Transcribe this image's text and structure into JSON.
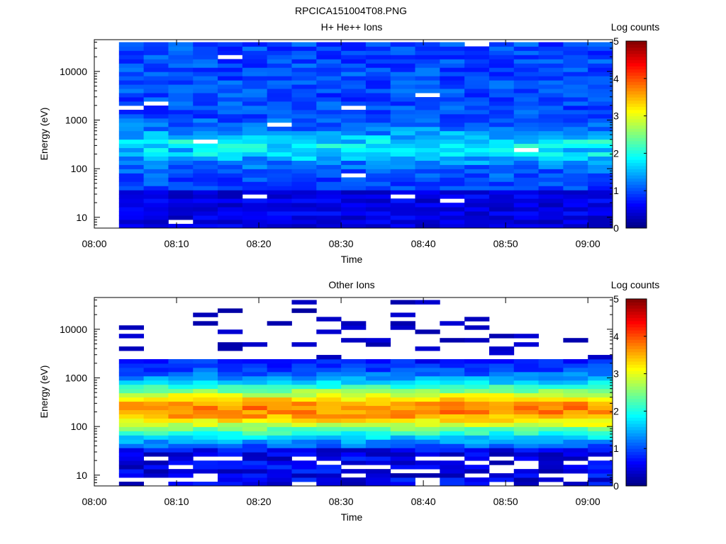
{
  "figure_title": "RPCICA151004T08.PNG",
  "chart_data": [
    {
      "type": "heatmap",
      "title": "H+ He++ Ions",
      "xlabel": "Time",
      "ylabel": "Energy (eV)",
      "x_ticks": [
        "08:00",
        "08:10",
        "08:20",
        "08:30",
        "08:40",
        "08:50",
        "09:00"
      ],
      "y_ticks": [
        "10",
        "100",
        "1000",
        "10000"
      ],
      "xlim": [
        "08:00",
        "09:03"
      ],
      "ylim": [
        6,
        45000
      ],
      "y_scale": "log",
      "time_bins": [
        "08:03",
        "08:06",
        "08:09",
        "08:12",
        "08:15",
        "08:18",
        "08:21",
        "08:24",
        "08:27",
        "08:30",
        "08:33",
        "08:36",
        "08:39",
        "08:42",
        "08:45",
        "08:48",
        "08:51",
        "08:54",
        "08:57",
        "09:00"
      ],
      "energy_range_ev": [
        6,
        40000
      ],
      "colorbar": {
        "label": "Log counts",
        "range": [
          0,
          5
        ],
        "ticks": [
          "0",
          "1",
          "2",
          "3",
          "4",
          "5"
        ]
      },
      "description": "Broad low-count background (log counts ~0.5-1.5) across all energies, slight enhancement (~2) near 200-400 eV around 08:12, 08:27-08:33 and 08:45-08:54"
    },
    {
      "type": "heatmap",
      "title": "Other Ions",
      "xlabel": "Time",
      "ylabel": "Energy (eV)",
      "x_ticks": [
        "08:00",
        "08:10",
        "08:20",
        "08:30",
        "08:40",
        "08:50",
        "09:00"
      ],
      "y_ticks": [
        "10",
        "100",
        "1000",
        "10000"
      ],
      "xlim": [
        "08:00",
        "09:03"
      ],
      "ylim": [
        6,
        45000
      ],
      "y_scale": "log",
      "time_bins": [
        "08:03",
        "08:06",
        "08:09",
        "08:12",
        "08:15",
        "08:18",
        "08:21",
        "08:24",
        "08:27",
        "08:30",
        "08:33",
        "08:36",
        "08:39",
        "08:42",
        "08:45",
        "08:48",
        "08:51",
        "08:54",
        "08:57",
        "09:00"
      ],
      "energy_range_ev": [
        6,
        40000
      ],
      "colorbar": {
        "label": "Log counts",
        "range": [
          0,
          5
        ],
        "ticks": [
          "0",
          "1",
          "2",
          "3",
          "4",
          "5"
        ]
      },
      "description": "Strong band (log counts ~3-3.8) centered near 150-300 eV across the whole interval, sparse low-count lines above 2000 eV"
    }
  ]
}
